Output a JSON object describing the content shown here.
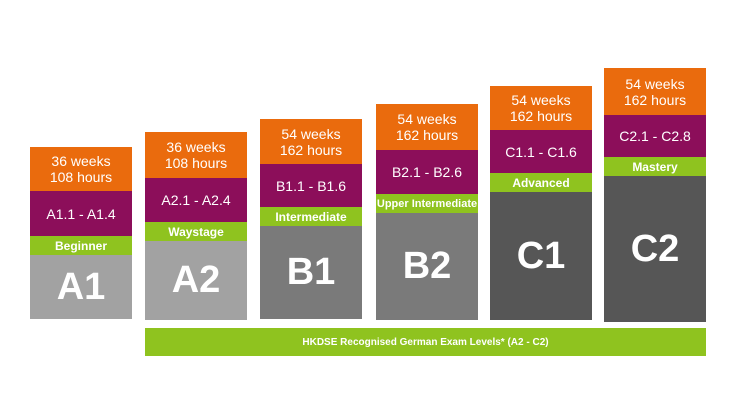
{
  "levels": [
    {
      "weeks": "36 weeks",
      "hours": "108 hours",
      "range": "A1.1 - A1.4",
      "label": "Beginner",
      "level": "A1",
      "color": "#a2a2a2"
    },
    {
      "weeks": "36 weeks",
      "hours": "108 hours",
      "range": "A2.1 - A2.4",
      "label": "Waystage",
      "level": "A2",
      "color": "#a2a2a2"
    },
    {
      "weeks": "54 weeks",
      "hours": "162 hours",
      "range": "B1.1 - B1.6",
      "label": "Intermediate",
      "level": "B1",
      "color": "#7a7a7a"
    },
    {
      "weeks": "54 weeks",
      "hours": "162 hours",
      "range": "B2.1 - B2.6",
      "label": "Upper Intermediate",
      "level": "B2",
      "color": "#7a7a7a"
    },
    {
      "weeks": "54 weeks",
      "hours": "162 hours",
      "range": "C1.1 - C1.6",
      "label": "Advanced",
      "level": "C1",
      "color": "#565656"
    },
    {
      "weeks": "54 weeks",
      "hours": "162 hours",
      "range": "C2.1 - C2.8",
      "label": "Mastery",
      "level": "C2",
      "color": "#565656"
    }
  ],
  "banner": {
    "text": "HKDSE Recognised German Exam Levels* (A2 - C2)"
  },
  "colors": {
    "duration": "#ea6b0d",
    "range": "#8c0e5a",
    "label": "#8fc31f"
  }
}
